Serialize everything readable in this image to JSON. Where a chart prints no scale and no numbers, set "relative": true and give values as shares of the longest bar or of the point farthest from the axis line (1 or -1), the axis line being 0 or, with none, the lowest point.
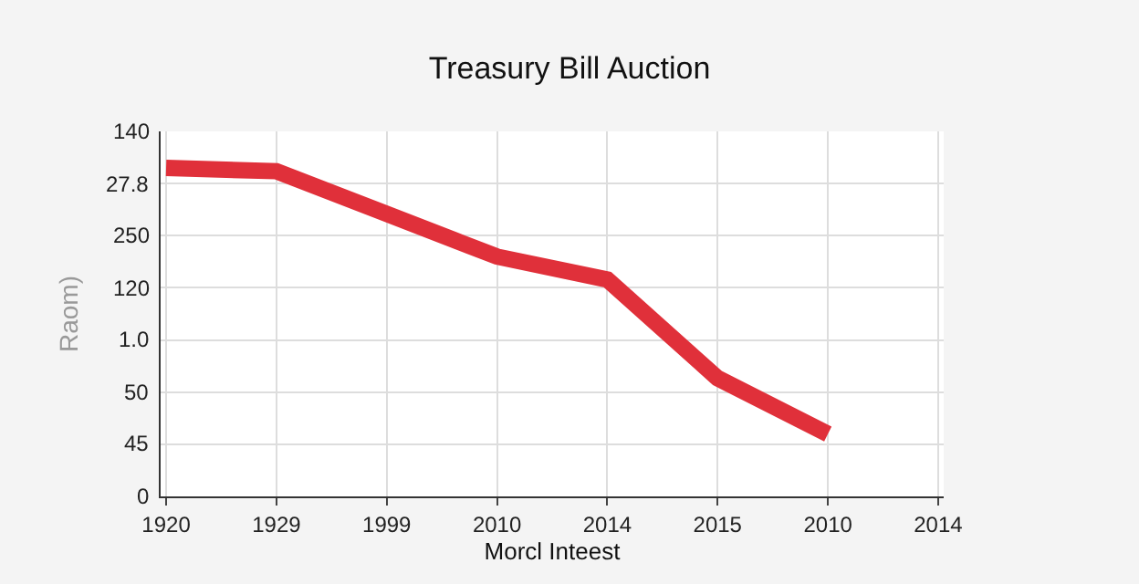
{
  "chart_data": {
    "type": "line",
    "title": "Treasury Bill Auction",
    "xlabel": "Morcl Inteest",
    "ylabel": "Raom)",
    "relative": true,
    "categories": [
      "1920",
      "1929",
      "1999",
      "2010",
      "2014",
      "2015",
      "2010",
      "2014"
    ],
    "series": [
      {
        "color": "#e0303a",
        "values": [
          1,
          0.99,
          0.86,
          0.73,
          0.66,
          0.36,
          0.19,
          null
        ]
      }
    ],
    "annotations": [
      "0",
      "45",
      "50",
      "1.0",
      "120",
      "250",
      "27.8",
      "140"
    ],
    "grid": true,
    "line_style": "solid"
  }
}
